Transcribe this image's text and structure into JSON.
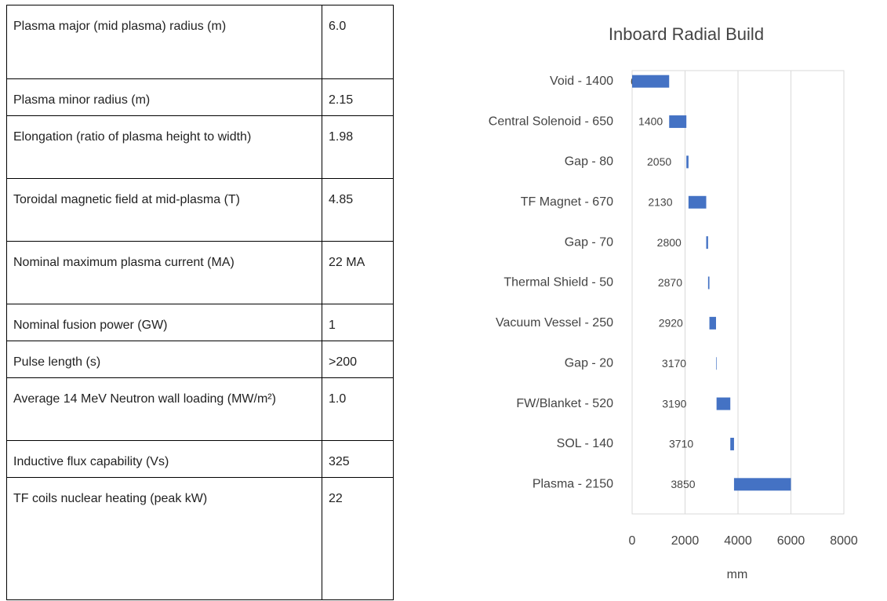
{
  "table": {
    "rows": [
      [
        "Plasma major (mid plasma) radius (m)",
        "6.0"
      ],
      [
        "Plasma minor radius (m)",
        "2.15"
      ],
      [
        "Elongation (ratio of plasma height to width)",
        "1.98"
      ],
      [
        "Toroidal magnetic field at mid-plasma (T)",
        "4.85"
      ],
      [
        "Nominal maximum plasma current (MA)",
        "22 MA"
      ],
      [
        "Nominal fusion power (GW)",
        "1"
      ],
      [
        "Pulse length (s)",
        ">200"
      ],
      [
        "Average 14 MeV Neutron wall loading (MW/m²)",
        "1.0"
      ],
      [
        "Inductive flux capability (Vs)",
        "325"
      ],
      [
        "TF coils nuclear heating (peak kW)",
        "22"
      ]
    ]
  },
  "chart_data": {
    "type": "bar",
    "orientation": "horizontal",
    "stacked": true,
    "title": "Inboard Radial Build",
    "x_label": "mm",
    "categories": [
      "Void - 1400",
      "Central Solenoid - 650",
      "Gap - 80",
      "TF Magnet - 670",
      "Gap - 70",
      "Thermal Shield - 50",
      "Vacuum Vessel - 250",
      "Gap - 20",
      "FW/Blanket - 520",
      "SOL - 140",
      "Plasma - 2150"
    ],
    "series": [
      {
        "color": "transparent",
        "values": [
          0,
          1400,
          2050,
          2130,
          2800,
          2870,
          2920,
          3170,
          3190,
          3710,
          3850
        ]
      },
      {
        "color": "#4472c4",
        "values": [
          1400,
          650,
          80,
          670,
          70,
          50,
          250,
          20,
          520,
          140,
          2150
        ]
      }
    ],
    "xlim": [
      0,
      8000
    ],
    "xticks": [
      0,
      2000,
      4000,
      6000,
      8000
    ],
    "grid": true
  }
}
